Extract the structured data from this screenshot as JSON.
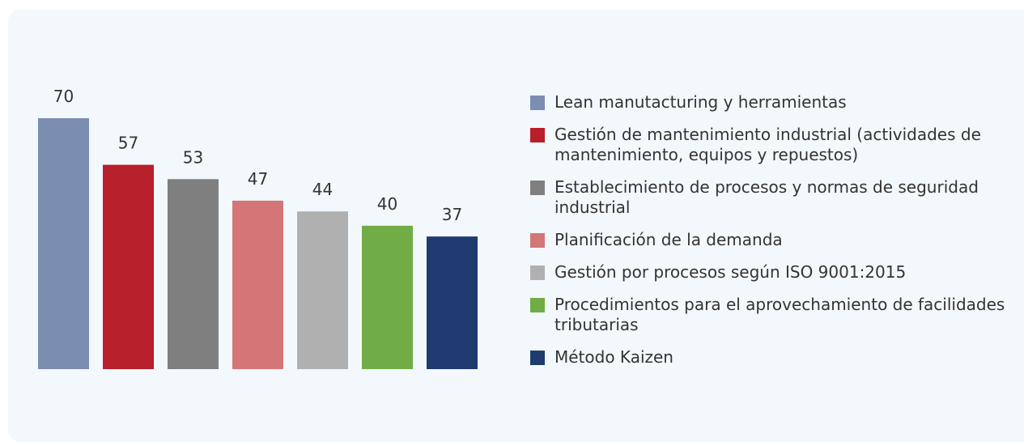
{
  "chart_data": {
    "type": "bar",
    "categories": [
      "Lean manutacturing y herramientas",
      "Gestión de mantenimiento industrial (actividades de mantenimiento, equipos y repuestos)",
      "Establecimiento de procesos y normas de seguridad industrial",
      "Planificación de la demanda",
      "Gestión por procesos según ISO 9001:2015",
      "Procedimientos para el aprovechamiento de facilidades tributarias",
      "Método Kaizen"
    ],
    "values": [
      70,
      57,
      53,
      47,
      44,
      40,
      37
    ],
    "colors": [
      "#7b8db0",
      "#b71f2a",
      "#7f7f7f",
      "#d47677",
      "#b0b0b0",
      "#70ad47",
      "#1f3b70"
    ],
    "legend": "right"
  }
}
